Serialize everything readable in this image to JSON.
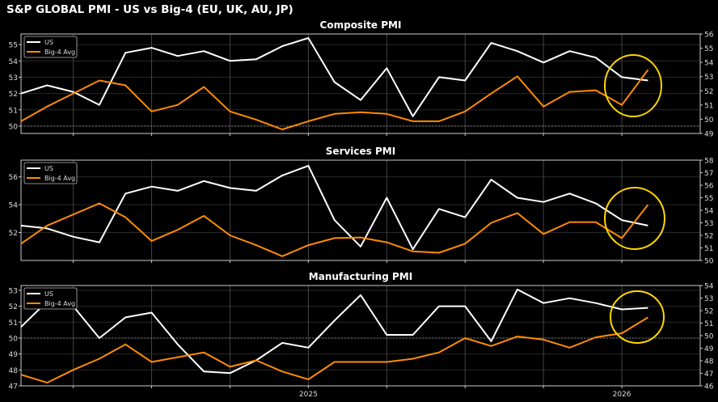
{
  "title": "S&P GLOBAL PMI - US vs Big-4 (EU, UK, AU, JP)",
  "colors": {
    "us": "#ffffff",
    "big4": "#ff8c00",
    "highlight": "#ffd700",
    "background": "#000000"
  },
  "chart_data": [
    {
      "type": "line",
      "title": "Composite PMI",
      "x": [
        "2024-02",
        "2024-03",
        "2024-04",
        "2024-05",
        "2024-06",
        "2024-07",
        "2024-08",
        "2024-09",
        "2024-10",
        "2024-11",
        "2024-12",
        "2025-01",
        "2025-02",
        "2025-03",
        "2025-04",
        "2025-05",
        "2025-06",
        "2025-07",
        "2025-08",
        "2025-09",
        "2025-10",
        "2025-11",
        "2025-12",
        "2026-01",
        "2026-02"
      ],
      "xticks": [
        "2025",
        "2026"
      ],
      "ylim": [
        49.55,
        55.65
      ],
      "yticks": [
        50,
        51,
        52,
        53,
        54,
        55
      ],
      "y2lim": [
        49,
        56
      ],
      "y2ticks": [
        49,
        50,
        51,
        52,
        53,
        54,
        55,
        56
      ],
      "reference_line": 50,
      "legend": "top-left",
      "grid": true,
      "series": [
        {
          "name": "US",
          "values": [
            52.0,
            52.5,
            52.1,
            51.3,
            54.5,
            54.8,
            54.3,
            54.6,
            54.0,
            54.1,
            54.9,
            55.4,
            52.7,
            51.6,
            53.55,
            50.6,
            53.0,
            52.8,
            55.1,
            54.6,
            53.9,
            54.6,
            54.2,
            53.0,
            52.8
          ]
        },
        {
          "name": "Big-4 Avg",
          "values": [
            50.3,
            51.2,
            52.0,
            52.8,
            52.5,
            50.9,
            51.3,
            52.4,
            50.9,
            50.4,
            49.8,
            50.3,
            50.75,
            50.85,
            50.75,
            50.3,
            50.3,
            50.9,
            52.0,
            53.05,
            51.2,
            52.1,
            52.2,
            51.3,
            53.45
          ]
        }
      ]
    },
    {
      "type": "line",
      "title": "Services PMI",
      "x": [
        "2024-02",
        "2024-03",
        "2024-04",
        "2024-05",
        "2024-06",
        "2024-07",
        "2024-08",
        "2024-09",
        "2024-10",
        "2024-11",
        "2024-12",
        "2025-01",
        "2025-02",
        "2025-03",
        "2025-04",
        "2025-05",
        "2025-06",
        "2025-07",
        "2025-08",
        "2025-09",
        "2025-10",
        "2025-11",
        "2025-12",
        "2026-01",
        "2026-02"
      ],
      "xticks": [
        "2025",
        "2026"
      ],
      "ylim": [
        50,
        57.2
      ],
      "yticks": [
        52,
        54,
        56
      ],
      "y2lim": [
        50,
        58
      ],
      "y2ticks": [
        50,
        51,
        52,
        53,
        54,
        55,
        56,
        57,
        58
      ],
      "legend": "top-left",
      "grid": true,
      "series": [
        {
          "name": "US",
          "values": [
            52.5,
            52.3,
            51.7,
            51.3,
            54.8,
            55.3,
            55.0,
            55.7,
            55.2,
            55.0,
            56.1,
            56.8,
            52.9,
            51.0,
            54.5,
            50.8,
            53.7,
            53.1,
            55.8,
            54.5,
            54.2,
            54.8,
            54.1,
            52.9,
            52.5
          ]
        },
        {
          "name": "Big-4 Avg",
          "values": [
            51.2,
            52.5,
            53.3,
            54.1,
            53.1,
            51.4,
            52.2,
            53.2,
            51.8,
            51.1,
            50.3,
            51.1,
            51.6,
            51.65,
            51.3,
            50.65,
            50.55,
            51.2,
            52.7,
            53.4,
            51.9,
            52.75,
            52.75,
            51.6,
            54.0
          ]
        }
      ]
    },
    {
      "type": "line",
      "title": "Manufacturing PMI",
      "x": [
        "2024-02",
        "2024-03",
        "2024-04",
        "2024-05",
        "2024-06",
        "2024-07",
        "2024-08",
        "2024-09",
        "2024-10",
        "2024-11",
        "2024-12",
        "2025-01",
        "2025-02",
        "2025-03",
        "2025-04",
        "2025-05",
        "2025-06",
        "2025-07",
        "2025-08",
        "2025-09",
        "2025-10",
        "2025-11",
        "2025-12",
        "2026-01",
        "2026-02"
      ],
      "xticks": [
        "2025",
        "2026"
      ],
      "ylim": [
        47,
        53.3
      ],
      "yticks": [
        47,
        48,
        49,
        50,
        51,
        52,
        53
      ],
      "y2lim": [
        46,
        54
      ],
      "y2ticks": [
        46,
        47,
        48,
        49,
        50,
        51,
        52,
        53,
        54
      ],
      "reference_line": 50,
      "legend": "top-left",
      "grid": true,
      "series": [
        {
          "name": "US",
          "values": [
            50.7,
            52.3,
            52.0,
            50.0,
            51.3,
            51.6,
            49.6,
            47.9,
            47.8,
            48.6,
            49.7,
            49.4,
            51.1,
            52.7,
            50.2,
            50.2,
            52.0,
            52.0,
            49.8,
            53.05,
            52.2,
            52.5,
            52.2,
            51.8,
            51.9
          ]
        },
        {
          "name": "Big-4 Avg",
          "values": [
            47.7,
            47.2,
            48.0,
            48.7,
            49.6,
            48.5,
            48.8,
            49.1,
            48.2,
            48.6,
            47.9,
            47.4,
            48.5,
            48.5,
            48.5,
            48.7,
            49.1,
            50.0,
            49.5,
            50.1,
            49.9,
            49.4,
            50.05,
            50.3,
            51.3
          ]
        }
      ]
    }
  ]
}
